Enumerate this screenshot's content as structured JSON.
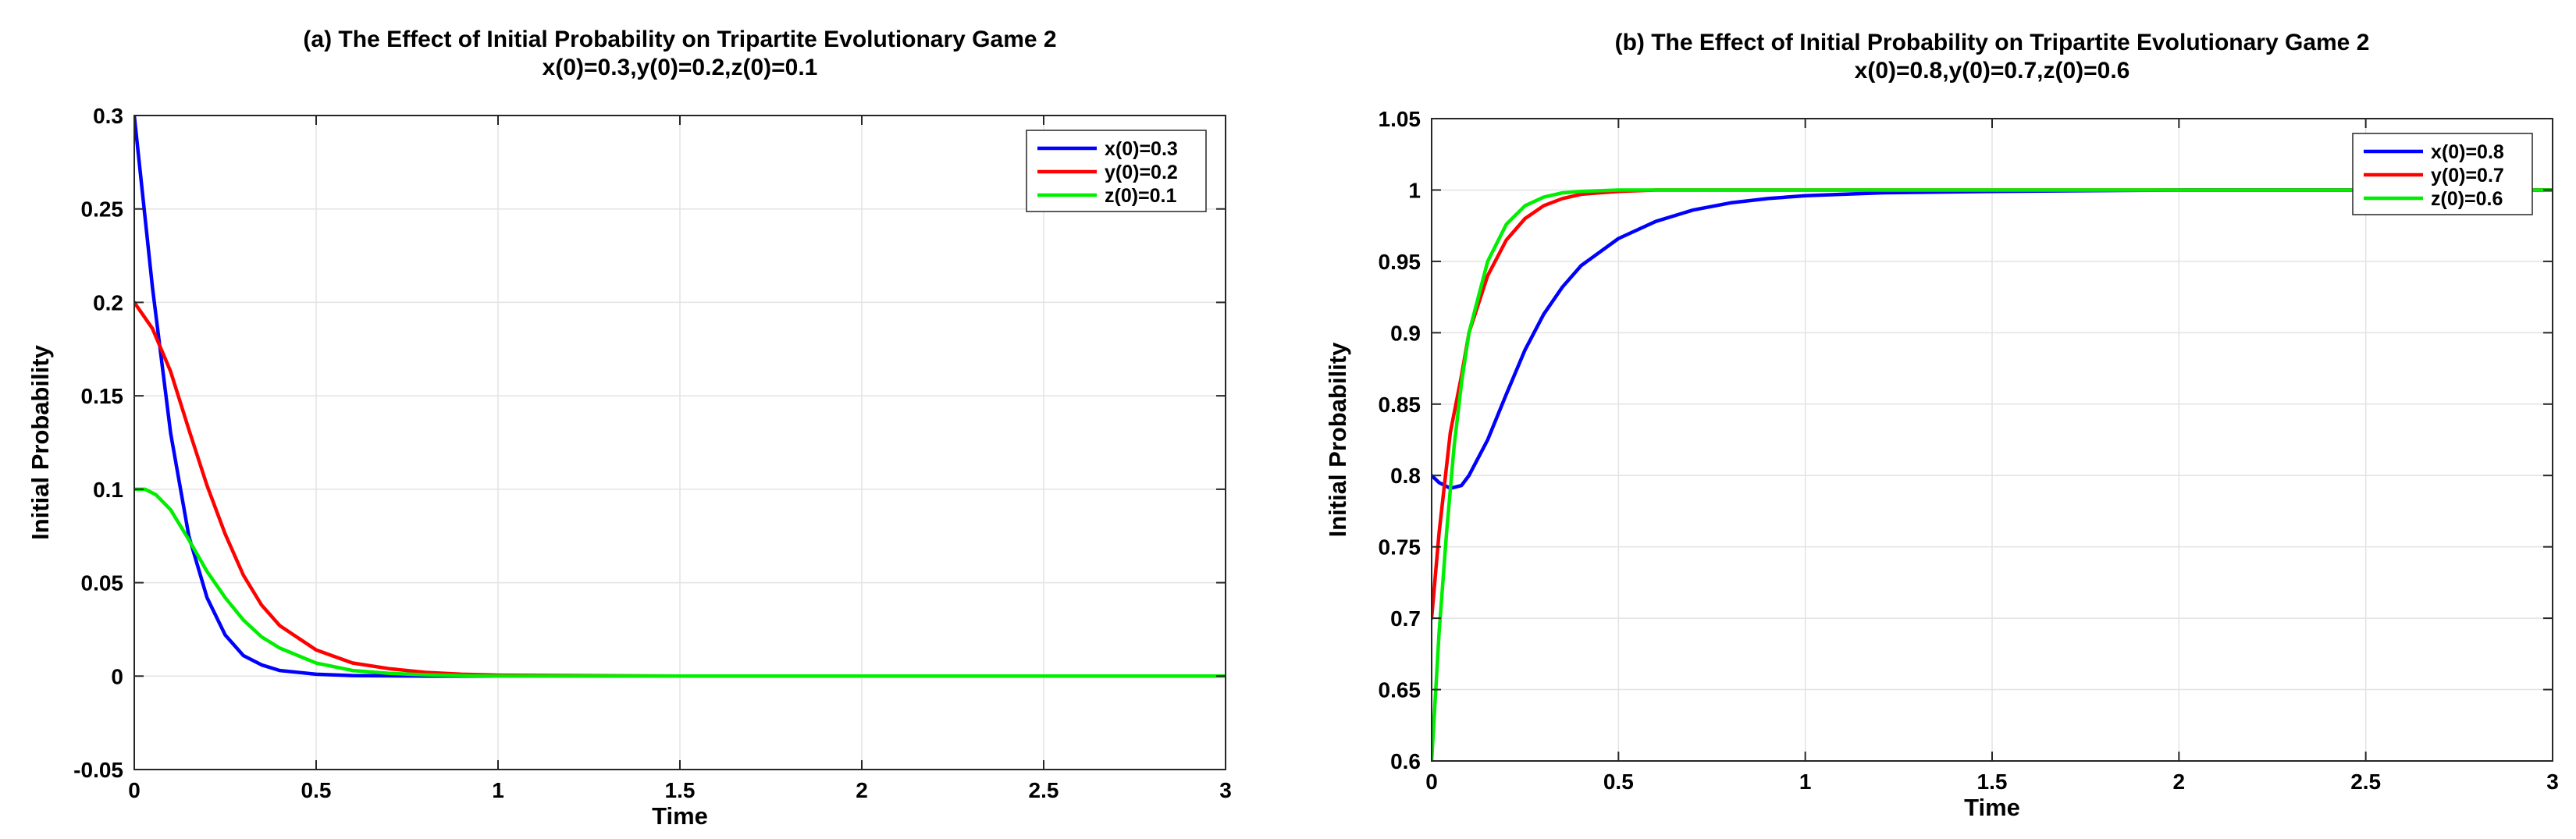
{
  "chart_data": [
    {
      "type": "line",
      "title": "(a) The Effect of Initial Probability on Tripartite Evolutionary Game 2",
      "subtitle": "x(0)=0.3,y(0)=0.2,z(0)=0.1",
      "xlabel": "Time",
      "ylabel": "Initial Probability",
      "xlim": [
        0,
        3
      ],
      "ylim": [
        -0.05,
        0.3
      ],
      "xticks": [
        0,
        0.5,
        1,
        1.5,
        2,
        2.5,
        3
      ],
      "xtick_labels": [
        "0",
        "0.5",
        "1",
        "1.5",
        "2",
        "2.5",
        "3"
      ],
      "yticks": [
        -0.05,
        0,
        0.05,
        0.1,
        0.15,
        0.2,
        0.25,
        0.3
      ],
      "ytick_labels": [
        "-0.05",
        "0",
        "0.05",
        "0.1",
        "0.15",
        "0.2",
        "0.25",
        "0.3"
      ],
      "grid": true,
      "legend_position": "top-right",
      "series": [
        {
          "name": "x(0)=0.3",
          "color": "#0000ff",
          "x": [
            0,
            0.05,
            0.1,
            0.15,
            0.2,
            0.25,
            0.3,
            0.35,
            0.4,
            0.5,
            0.6,
            0.8,
            1.0,
            1.5,
            2.0,
            2.5,
            3.0
          ],
          "y": [
            0.3,
            0.208,
            0.13,
            0.075,
            0.042,
            0.022,
            0.011,
            0.006,
            0.003,
            0.001,
            0.0003,
            0,
            0,
            0,
            0,
            0,
            0
          ]
        },
        {
          "name": "y(0)=0.2",
          "color": "#ff0000",
          "x": [
            0,
            0.05,
            0.1,
            0.15,
            0.2,
            0.25,
            0.3,
            0.35,
            0.4,
            0.5,
            0.6,
            0.7,
            0.8,
            0.9,
            1.0,
            1.5,
            2.0,
            2.5,
            3.0
          ],
          "y": [
            0.2,
            0.186,
            0.163,
            0.132,
            0.102,
            0.076,
            0.054,
            0.038,
            0.027,
            0.014,
            0.007,
            0.004,
            0.002,
            0.001,
            0.0005,
            0,
            0,
            0,
            0
          ]
        },
        {
          "name": "z(0)=0.1",
          "color": "#00ee00",
          "x": [
            0,
            0.03,
            0.06,
            0.1,
            0.15,
            0.2,
            0.25,
            0.3,
            0.35,
            0.4,
            0.5,
            0.6,
            0.7,
            0.8,
            0.9,
            1.0,
            1.5,
            2.0,
            2.5,
            3.0
          ],
          "y": [
            0.1,
            0.1,
            0.097,
            0.089,
            0.073,
            0.056,
            0.042,
            0.03,
            0.021,
            0.015,
            0.007,
            0.003,
            0.0015,
            0.0007,
            0.0003,
            0,
            0,
            0,
            0,
            0
          ]
        }
      ]
    },
    {
      "type": "line",
      "title": "(b) The Effect of Initial Probability on Tripartite Evolutionary Game 2",
      "subtitle": "x(0)=0.8,y(0)=0.7,z(0)=0.6",
      "xlabel": "Time",
      "ylabel": "Initial Probability",
      "xlim": [
        0,
        3
      ],
      "ylim": [
        0.6,
        1.05
      ],
      "xticks": [
        0,
        0.5,
        1,
        1.5,
        2,
        2.5,
        3
      ],
      "xtick_labels": [
        "0",
        "0.5",
        "1",
        "1.5",
        "2",
        "2.5",
        "3"
      ],
      "yticks": [
        0.6,
        0.65,
        0.7,
        0.75,
        0.8,
        0.85,
        0.9,
        0.95,
        1,
        1.05
      ],
      "ytick_labels": [
        "0.6",
        "0.65",
        "0.7",
        "0.75",
        "0.8",
        "0.85",
        "0.9",
        "0.95",
        "1",
        "1.05"
      ],
      "grid": true,
      "legend_position": "top-right",
      "series": [
        {
          "name": "x(0)=0.8",
          "color": "#0000ff",
          "x": [
            0,
            0.02,
            0.05,
            0.08,
            0.1,
            0.15,
            0.2,
            0.25,
            0.3,
            0.35,
            0.4,
            0.5,
            0.6,
            0.7,
            0.8,
            0.9,
            1.0,
            1.2,
            1.5,
            2.0,
            2.5,
            3.0
          ],
          "y": [
            0.8,
            0.795,
            0.791,
            0.793,
            0.8,
            0.825,
            0.857,
            0.888,
            0.913,
            0.932,
            0.947,
            0.966,
            0.978,
            0.986,
            0.991,
            0.994,
            0.996,
            0.998,
            0.999,
            1.0,
            1.0,
            1.0
          ]
        },
        {
          "name": "y(0)=0.7",
          "color": "#ff0000",
          "x": [
            0,
            0.02,
            0.05,
            0.08,
            0.1,
            0.15,
            0.2,
            0.25,
            0.3,
            0.35,
            0.4,
            0.5,
            0.6,
            0.8,
            1.0,
            1.5,
            2.0,
            2.5,
            3.0
          ],
          "y": [
            0.7,
            0.76,
            0.83,
            0.87,
            0.9,
            0.94,
            0.965,
            0.98,
            0.989,
            0.994,
            0.997,
            0.999,
            1.0,
            1.0,
            1.0,
            1.0,
            1.0,
            1.0,
            1.0
          ]
        },
        {
          "name": "z(0)=0.6",
          "color": "#00ee00",
          "x": [
            0,
            0.02,
            0.04,
            0.06,
            0.08,
            0.1,
            0.15,
            0.2,
            0.25,
            0.3,
            0.35,
            0.4,
            0.5,
            0.6,
            0.8,
            1.0,
            1.5,
            1.8,
            2.0,
            2.5,
            3.0
          ],
          "y": [
            0.6,
            0.69,
            0.76,
            0.82,
            0.865,
            0.9,
            0.95,
            0.976,
            0.989,
            0.995,
            0.998,
            0.999,
            1.0,
            1.0,
            1.0,
            1.0,
            1.0,
            1.0,
            1.0,
            1.0,
            1.0
          ]
        }
      ]
    }
  ]
}
